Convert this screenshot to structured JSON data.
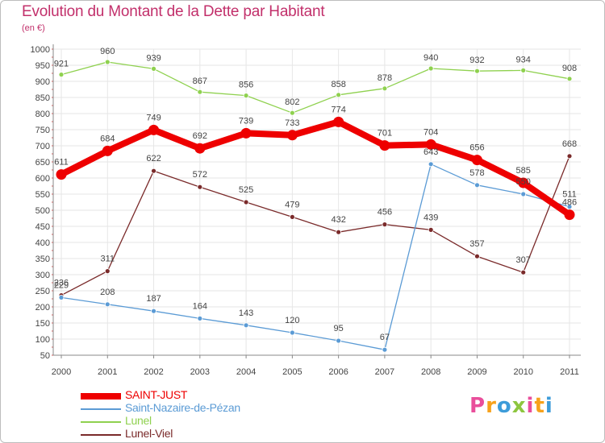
{
  "header": {
    "title": "Evolution du Montant de la Dette par Habitant",
    "unit": "(en €)"
  },
  "chart_data": {
    "type": "line",
    "title": "Evolution du Montant de la Dette par Habitant",
    "ylabel": "(en €)",
    "xlabel": "",
    "ylim": [
      50,
      1000
    ],
    "yticks": [
      1000,
      950,
      900,
      850,
      800,
      750,
      700,
      650,
      600,
      550,
      500,
      450,
      400,
      350,
      300,
      250,
      200,
      150,
      100,
      50
    ],
    "grid": true,
    "legend_position": "bottom-left",
    "categories": [
      "2000",
      "2001",
      "2002",
      "2003",
      "2004",
      "2005",
      "2006",
      "2007",
      "2008",
      "2009",
      "2010",
      "2011"
    ],
    "series": [
      {
        "name": "SAINT-JUST",
        "color": "#ee0000",
        "values": [
          611,
          684,
          749,
          692,
          739,
          733,
          774,
          701,
          704,
          656,
          585,
          486
        ]
      },
      {
        "name": "Saint-Nazaire-de-Pézan",
        "color": "#5b9bd5",
        "values": [
          229,
          208,
          187,
          164,
          143,
          120,
          95,
          67,
          643,
          578,
          550,
          511
        ]
      },
      {
        "name": "Lunel",
        "color": "#8fd14f",
        "values": [
          921,
          960,
          939,
          867,
          856,
          802,
          858,
          878,
          940,
          932,
          934,
          908
        ]
      },
      {
        "name": "Lunel-Viel",
        "color": "#7a2a2a",
        "values": [
          236,
          311,
          622,
          572,
          525,
          479,
          432,
          456,
          439,
          357,
          307,
          668
        ]
      }
    ]
  },
  "logo": {
    "letters": [
      "P",
      "r",
      "o",
      "x",
      "i",
      "t",
      "i"
    ],
    "colors": [
      "#e94e9b",
      "#f7a21b",
      "#3d9cd9",
      "#8dc63f",
      "#e94e9b",
      "#f7a21b",
      "#3d9cd9"
    ]
  }
}
